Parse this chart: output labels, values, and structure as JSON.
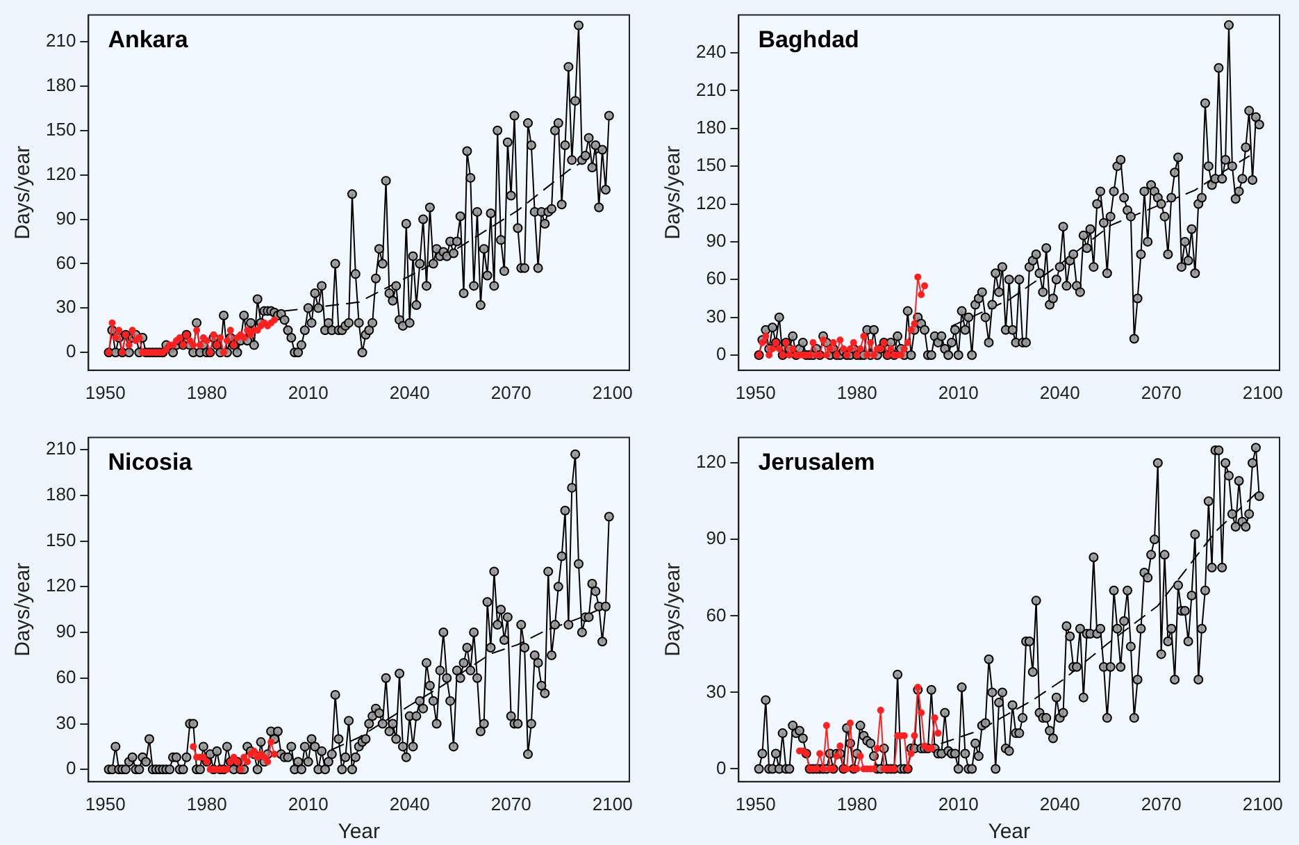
{
  "chart_data": [
    {
      "type": "line",
      "title": "Ankara",
      "ylabel": "Days/year",
      "xlim": [
        1945,
        2105
      ],
      "xticks": [
        1950,
        1980,
        2010,
        2040,
        2070,
        2100
      ],
      "ylim": [
        -12,
        228
      ],
      "yticks": [
        0,
        30,
        60,
        90,
        120,
        150,
        180,
        210
      ],
      "grid": false,
      "legend": false,
      "series": [
        {
          "color": "#ff2020",
          "marker": "circle",
          "line_style": "solid",
          "x": [
            1951,
            1952,
            1953,
            1954,
            1955,
            1956,
            1957,
            1958,
            1959,
            1960,
            1961,
            1962,
            1963,
            1964,
            1965,
            1966,
            1967,
            1968,
            1969,
            1970,
            1971,
            1972,
            1973,
            1974,
            1975,
            1976,
            1977,
            1978,
            1979,
            1980,
            1981,
            1982,
            1983,
            1984,
            1985,
            1986,
            1987,
            1988,
            1989,
            1990,
            1991,
            1992,
            1993,
            1994,
            1995,
            1996,
            1997,
            1998,
            1999,
            2000
          ],
          "values": [
            0,
            20,
            10,
            15,
            0,
            12,
            5,
            15,
            8,
            10,
            0,
            0,
            0,
            0,
            0,
            0,
            0,
            2,
            5,
            5,
            8,
            10,
            5,
            12,
            8,
            5,
            15,
            5,
            10,
            8,
            0,
            12,
            5,
            10,
            0,
            8,
            15,
            5,
            10,
            12,
            10,
            15,
            12,
            15,
            15,
            18,
            20,
            18,
            20,
            22
          ]
        },
        {
          "color": "#000000",
          "marker": "circle",
          "line_style": "solid",
          "x": [
            1951,
            1952,
            1953,
            1954,
            1955,
            1956,
            1957,
            1958,
            1959,
            1960,
            1961,
            1962,
            1963,
            1964,
            1965,
            1966,
            1967,
            1968,
            1969,
            1970,
            1971,
            1972,
            1973,
            1974,
            1975,
            1976,
            1977,
            1978,
            1979,
            1980,
            1981,
            1982,
            1983,
            1984,
            1985,
            1986,
            1987,
            1988,
            1989,
            1990,
            1991,
            1992,
            1993,
            1994,
            1995,
            1996,
            1997,
            1998,
            1999,
            2000,
            2001,
            2002,
            2003,
            2004,
            2005,
            2006,
            2007,
            2008,
            2009,
            2010,
            2011,
            2012,
            2013,
            2014,
            2015,
            2016,
            2017,
            2018,
            2019,
            2020,
            2021,
            2022,
            2023,
            2024,
            2025,
            2026,
            2027,
            2028,
            2029,
            2030,
            2031,
            2032,
            2033,
            2034,
            2035,
            2036,
            2037,
            2038,
            2039,
            2040,
            2041,
            2042,
            2043,
            2044,
            2045,
            2046,
            2047,
            2048,
            2049,
            2050,
            2051,
            2052,
            2053,
            2054,
            2055,
            2056,
            2057,
            2058,
            2059,
            2060,
            2061,
            2062,
            2063,
            2064,
            2065,
            2066,
            2067,
            2068,
            2069,
            2070,
            2071,
            2072,
            2073,
            2074,
            2075,
            2076,
            2077,
            2078,
            2079,
            2080,
            2081,
            2082,
            2083,
            2084,
            2085,
            2086,
            2087,
            2088,
            2089,
            2090,
            2091,
            2092,
            2093,
            2094,
            2095,
            2096,
            2097,
            2098,
            2099
          ],
          "values": [
            0,
            15,
            0,
            10,
            0,
            12,
            0,
            10,
            12,
            0,
            10,
            0,
            0,
            0,
            0,
            0,
            0,
            5,
            3,
            0,
            5,
            8,
            5,
            12,
            5,
            0,
            20,
            0,
            5,
            0,
            0,
            10,
            5,
            0,
            25,
            0,
            10,
            5,
            0,
            8,
            25,
            8,
            20,
            5,
            36,
            20,
            28,
            28,
            28,
            27,
            25,
            26,
            22,
            15,
            10,
            0,
            0,
            5,
            15,
            30,
            20,
            40,
            30,
            45,
            15,
            20,
            15,
            60,
            15,
            15,
            18,
            20,
            107,
            53,
            20,
            0,
            12,
            15,
            20,
            50,
            70,
            60,
            116,
            40,
            35,
            45,
            22,
            18,
            87,
            20,
            65,
            32,
            60,
            90,
            45,
            98,
            60,
            70,
            65,
            68,
            65,
            75,
            67,
            75,
            92,
            40,
            136,
            118,
            45,
            95,
            32,
            70,
            52,
            94,
            45,
            150,
            76,
            55,
            142,
            106,
            160,
            84,
            57,
            57,
            155,
            140,
            95,
            57,
            95,
            87,
            95,
            97,
            150,
            155,
            100,
            140,
            193,
            130,
            170,
            221,
            130,
            133,
            145,
            125,
            140,
            98,
            137,
            110,
            160
          ]
        },
        {
          "color": "#000000",
          "marker": "none",
          "line_style": "dashed",
          "x": [
            2003,
            2025,
            2047,
            2072,
            2087,
            2099
          ],
          "values": [
            28,
            34,
            60,
            96,
            123,
            140
          ]
        }
      ]
    },
    {
      "type": "line",
      "title": "Baghdad",
      "ylabel": "Days/year",
      "xlim": [
        1945,
        2105
      ],
      "xticks": [
        1950,
        1980,
        2010,
        2040,
        2070,
        2100
      ],
      "ylim": [
        -12,
        270
      ],
      "yticks": [
        0,
        30,
        60,
        90,
        120,
        150,
        180,
        210,
        240
      ],
      "grid": false,
      "legend": false,
      "series": [
        {
          "color": "#ff2020",
          "marker": "circle",
          "line_style": "solid",
          "x": [
            1951,
            1952,
            1953,
            1954,
            1955,
            1956,
            1957,
            1958,
            1959,
            1960,
            1961,
            1962,
            1963,
            1964,
            1965,
            1966,
            1967,
            1968,
            1969,
            1970,
            1971,
            1972,
            1973,
            1974,
            1975,
            1976,
            1977,
            1978,
            1979,
            1980,
            1981,
            1982,
            1983,
            1984,
            1985,
            1986,
            1987,
            1988,
            1989,
            1990,
            1991,
            1992,
            1993,
            1994,
            1995,
            1996,
            1997,
            1998,
            1999,
            2000
          ],
          "values": [
            0,
            10,
            15,
            0,
            5,
            10,
            5,
            0,
            10,
            0,
            5,
            0,
            0,
            0,
            0,
            0,
            10,
            0,
            0,
            12,
            0,
            5,
            10,
            0,
            12,
            5,
            0,
            5,
            10,
            0,
            5,
            15,
            0,
            10,
            0,
            5,
            5,
            10,
            0,
            5,
            0,
            0,
            0,
            5,
            10,
            20,
            25,
            62,
            48,
            55
          ]
        },
        {
          "color": "#000000",
          "marker": "circle",
          "line_style": "solid",
          "x": [
            1951,
            1952,
            1953,
            1954,
            1955,
            1956,
            1957,
            1958,
            1959,
            1960,
            1961,
            1962,
            1963,
            1964,
            1965,
            1966,
            1967,
            1968,
            1969,
            1970,
            1971,
            1972,
            1973,
            1974,
            1975,
            1976,
            1977,
            1978,
            1979,
            1980,
            1981,
            1982,
            1983,
            1984,
            1985,
            1986,
            1987,
            1988,
            1989,
            1990,
            1991,
            1992,
            1993,
            1994,
            1995,
            1996,
            1997,
            1998,
            1999,
            2000,
            2001,
            2002,
            2003,
            2004,
            2005,
            2006,
            2007,
            2008,
            2009,
            2010,
            2011,
            2012,
            2013,
            2014,
            2015,
            2016,
            2017,
            2018,
            2019,
            2020,
            2021,
            2022,
            2023,
            2024,
            2025,
            2026,
            2027,
            2028,
            2029,
            2030,
            2031,
            2032,
            2033,
            2034,
            2035,
            2036,
            2037,
            2038,
            2039,
            2040,
            2041,
            2042,
            2043,
            2044,
            2045,
            2046,
            2047,
            2048,
            2049,
            2050,
            2051,
            2052,
            2053,
            2054,
            2055,
            2056,
            2057,
            2058,
            2059,
            2060,
            2061,
            2062,
            2063,
            2064,
            2065,
            2066,
            2067,
            2068,
            2069,
            2070,
            2071,
            2072,
            2073,
            2074,
            2075,
            2076,
            2077,
            2078,
            2079,
            2080,
            2081,
            2082,
            2083,
            2084,
            2085,
            2086,
            2087,
            2088,
            2089,
            2090,
            2091,
            2092,
            2093,
            2094,
            2095,
            2096,
            2097,
            2098,
            2099
          ],
          "values": [
            0,
            12,
            20,
            5,
            22,
            10,
            30,
            0,
            10,
            5,
            15,
            0,
            5,
            10,
            0,
            0,
            0,
            5,
            0,
            15,
            10,
            0,
            5,
            0,
            0,
            3,
            0,
            0,
            5,
            0,
            0,
            0,
            20,
            0,
            20,
            0,
            5,
            10,
            0,
            10,
            0,
            15,
            5,
            0,
            35,
            0,
            20,
            30,
            25,
            20,
            0,
            0,
            15,
            10,
            15,
            5,
            0,
            10,
            20,
            0,
            35,
            20,
            30,
            0,
            40,
            45,
            50,
            30,
            10,
            40,
            65,
            50,
            70,
            20,
            60,
            20,
            10,
            60,
            10,
            10,
            70,
            75,
            80,
            65,
            50,
            85,
            40,
            45,
            60,
            70,
            102,
            55,
            75,
            80,
            55,
            50,
            95,
            85,
            100,
            70,
            120,
            130,
            105,
            65,
            110,
            130,
            150,
            155,
            125,
            115,
            110,
            13,
            45,
            80,
            130,
            90,
            135,
            130,
            125,
            120,
            110,
            80,
            125,
            145,
            157,
            70,
            90,
            75,
            100,
            65,
            120,
            125,
            200,
            150,
            135,
            140,
            228,
            140,
            155,
            262,
            150,
            124,
            130,
            140,
            165,
            194,
            139,
            189,
            183
          ]
        },
        {
          "color": "#000000",
          "marker": "none",
          "line_style": "dashed",
          "x": [
            2008,
            2025,
            2040,
            2055,
            2072,
            2080,
            2088,
            2096
          ],
          "values": [
            23,
            44,
            72,
            103,
            122,
            131,
            145,
            158
          ]
        }
      ]
    },
    {
      "type": "line",
      "title": "Nicosia",
      "ylabel": "Days/year",
      "xlabel": "Year",
      "xlim": [
        1945,
        2105
      ],
      "xticks": [
        1950,
        1980,
        2010,
        2040,
        2070,
        2100
      ],
      "ylim": [
        -8,
        218
      ],
      "yticks": [
        0,
        30,
        60,
        90,
        120,
        150,
        180,
        210
      ],
      "grid": false,
      "legend": false,
      "series": [
        {
          "color": "#ff2020",
          "marker": "circle",
          "line_style": "solid",
          "x": [
            1976,
            1977,
            1978,
            1979,
            1980,
            1981,
            1982,
            1983,
            1984,
            1985,
            1986,
            1987,
            1988,
            1989,
            1990,
            1991,
            1992,
            1993,
            1994,
            1995,
            1996,
            1997,
            1998,
            1999,
            2000
          ],
          "values": [
            15,
            8,
            8,
            8,
            5,
            0,
            0,
            0,
            0,
            0,
            0,
            5,
            8,
            5,
            0,
            8,
            5,
            10,
            12,
            8,
            10,
            8,
            5,
            18,
            10
          ]
        },
        {
          "color": "#000000",
          "marker": "circle",
          "line_style": "solid",
          "x": [
            1951,
            1952,
            1953,
            1954,
            1955,
            1956,
            1957,
            1958,
            1959,
            1960,
            1961,
            1962,
            1963,
            1964,
            1965,
            1966,
            1967,
            1968,
            1969,
            1970,
            1971,
            1972,
            1973,
            1974,
            1975,
            1976,
            1977,
            1978,
            1979,
            1980,
            1981,
            1982,
            1983,
            1984,
            1985,
            1986,
            1987,
            1988,
            1989,
            1990,
            1991,
            1992,
            1993,
            1994,
            1995,
            1996,
            1997,
            1998,
            1999,
            2000,
            2001,
            2002,
            2003,
            2004,
            2005,
            2006,
            2007,
            2008,
            2009,
            2010,
            2011,
            2012,
            2013,
            2014,
            2015,
            2016,
            2017,
            2018,
            2019,
            2020,
            2021,
            2022,
            2023,
            2024,
            2025,
            2026,
            2027,
            2028,
            2029,
            2030,
            2031,
            2032,
            2033,
            2034,
            2035,
            2036,
            2037,
            2038,
            2039,
            2040,
            2041,
            2042,
            2043,
            2044,
            2045,
            2046,
            2047,
            2048,
            2049,
            2050,
            2051,
            2052,
            2053,
            2054,
            2055,
            2056,
            2057,
            2058,
            2059,
            2060,
            2061,
            2062,
            2063,
            2064,
            2065,
            2066,
            2067,
            2068,
            2069,
            2070,
            2071,
            2072,
            2073,
            2074,
            2075,
            2076,
            2077,
            2078,
            2079,
            2080,
            2081,
            2082,
            2083,
            2084,
            2085,
            2086,
            2087,
            2088,
            2089,
            2090,
            2091,
            2092,
            2093,
            2094,
            2095,
            2096,
            2097,
            2098,
            2099
          ],
          "values": [
            0,
            0,
            15,
            0,
            0,
            0,
            5,
            8,
            0,
            0,
            8,
            5,
            20,
            0,
            0,
            0,
            0,
            0,
            0,
            8,
            8,
            0,
            0,
            8,
            30,
            30,
            0,
            0,
            15,
            5,
            10,
            0,
            12,
            0,
            0,
            15,
            5,
            0,
            5,
            0,
            0,
            15,
            12,
            10,
            0,
            18,
            5,
            10,
            25,
            20,
            25,
            10,
            8,
            8,
            15,
            0,
            5,
            0,
            15,
            5,
            20,
            15,
            0,
            12,
            0,
            5,
            10,
            49,
            20,
            0,
            8,
            32,
            0,
            8,
            15,
            18,
            20,
            30,
            35,
            40,
            37,
            30,
            60,
            25,
            30,
            20,
            63,
            15,
            8,
            35,
            15,
            35,
            45,
            40,
            70,
            55,
            45,
            30,
            65,
            90,
            60,
            45,
            15,
            65,
            60,
            70,
            80,
            65,
            90,
            60,
            25,
            30,
            110,
            80,
            130,
            95,
            105,
            85,
            100,
            35,
            30,
            30,
            95,
            80,
            10,
            30,
            75,
            70,
            55,
            50,
            130,
            75,
            95,
            120,
            140,
            170,
            95,
            185,
            207,
            135,
            90,
            100,
            100,
            122,
            117,
            107,
            84,
            107,
            166
          ]
        },
        {
          "color": "#000000",
          "marker": "none",
          "line_style": "dashed",
          "x": [
            2017,
            2025,
            2040,
            2049,
            2064,
            2072,
            2080,
            2091,
            2098
          ],
          "values": [
            13,
            21,
            42,
            54,
            76,
            82,
            91,
            100,
            107
          ]
        }
      ]
    },
    {
      "type": "line",
      "title": "Jerusalem",
      "ylabel": "Days/year",
      "xlabel": "Year",
      "xlim": [
        1945,
        2105
      ],
      "xticks": [
        1950,
        1980,
        2010,
        2040,
        2070,
        2100
      ],
      "ylim": [
        -5,
        130
      ],
      "yticks": [
        0,
        30,
        60,
        90,
        120
      ],
      "grid": false,
      "legend": false,
      "series": [
        {
          "color": "#ff2020",
          "marker": "circle",
          "line_style": "solid",
          "x": [
            1963,
            1964,
            1965,
            1966,
            1967,
            1968,
            1969,
            1970,
            1971,
            1972,
            1973,
            1974,
            1975,
            1976,
            1977,
            1978,
            1979,
            1980,
            1981,
            1982,
            1983,
            1984,
            1985,
            1986,
            1987,
            1988,
            1989,
            1990,
            1991,
            1992,
            1993,
            1994,
            1995,
            1996,
            1997,
            1998,
            1999,
            2000,
            2001,
            2002,
            2003,
            2004
          ],
          "values": [
            7,
            7,
            6,
            0,
            0,
            0,
            6,
            0,
            17,
            0,
            0,
            5,
            9,
            0,
            0,
            18,
            0,
            0,
            5,
            0,
            0,
            0,
            0,
            8,
            23,
            0,
            0,
            0,
            0,
            13,
            13,
            13,
            0,
            6,
            13,
            32,
            22,
            9,
            8,
            8,
            20,
            14
          ]
        },
        {
          "color": "#000000",
          "marker": "circle",
          "line_style": "solid",
          "x": [
            1951,
            1952,
            1953,
            1954,
            1955,
            1956,
            1957,
            1958,
            1959,
            1960,
            1961,
            1962,
            1963,
            1964,
            1965,
            1966,
            1967,
            1968,
            1969,
            1970,
            1971,
            1972,
            1973,
            1974,
            1975,
            1976,
            1977,
            1978,
            1979,
            1980,
            1981,
            1982,
            1983,
            1984,
            1985,
            1986,
            1987,
            1988,
            1989,
            1990,
            1991,
            1992,
            1993,
            1994,
            1995,
            1996,
            1997,
            1998,
            1999,
            2000,
            2001,
            2002,
            2003,
            2004,
            2005,
            2006,
            2007,
            2008,
            2009,
            2010,
            2011,
            2012,
            2013,
            2014,
            2015,
            2016,
            2017,
            2018,
            2019,
            2020,
            2021,
            2022,
            2023,
            2024,
            2025,
            2026,
            2027,
            2028,
            2029,
            2030,
            2031,
            2032,
            2033,
            2034,
            2035,
            2036,
            2037,
            2038,
            2039,
            2040,
            2041,
            2042,
            2043,
            2044,
            2045,
            2046,
            2047,
            2048,
            2049,
            2050,
            2051,
            2052,
            2053,
            2054,
            2055,
            2056,
            2057,
            2058,
            2059,
            2060,
            2061,
            2062,
            2063,
            2064,
            2065,
            2066,
            2067,
            2068,
            2069,
            2070,
            2071,
            2072,
            2073,
            2074,
            2075,
            2076,
            2077,
            2078,
            2079,
            2080,
            2081,
            2082,
            2083,
            2084,
            2085,
            2086,
            2087,
            2088,
            2089,
            2090,
            2091,
            2092,
            2093,
            2094,
            2095,
            2096,
            2097,
            2098,
            2099
          ],
          "values": [
            0,
            6,
            27,
            0,
            0,
            6,
            0,
            14,
            0,
            0,
            17,
            14,
            15,
            12,
            6,
            0,
            0,
            0,
            0,
            0,
            0,
            6,
            0,
            6,
            6,
            0,
            16,
            10,
            0,
            6,
            17,
            13,
            11,
            10,
            5,
            0,
            0,
            8,
            0,
            0,
            0,
            37,
            0,
            0,
            0,
            8,
            8,
            31,
            8,
            8,
            8,
            31,
            8,
            6,
            6,
            22,
            7,
            6,
            6,
            0,
            32,
            6,
            0,
            0,
            10,
            5,
            17,
            18,
            43,
            30,
            0,
            26,
            30,
            8,
            7,
            25,
            14,
            14,
            20,
            50,
            50,
            38,
            66,
            22,
            20,
            20,
            15,
            12,
            28,
            20,
            22,
            56,
            52,
            40,
            40,
            55,
            28,
            53,
            53,
            83,
            53,
            55,
            40,
            20,
            40,
            70,
            55,
            40,
            58,
            70,
            48,
            20,
            35,
            55,
            77,
            75,
            84,
            90,
            120,
            45,
            84,
            50,
            55,
            35,
            72,
            62,
            62,
            50,
            68,
            92,
            35,
            55,
            70,
            105,
            79,
            125,
            125,
            79,
            120,
            115,
            100,
            95,
            113,
            97,
            95,
            100,
            120,
            126,
            107
          ]
        },
        {
          "color": "#000000",
          "marker": "none",
          "line_style": "dashed",
          "x": [
            2005,
            2016,
            2032,
            2041,
            2054,
            2069,
            2086,
            2094,
            2098
          ],
          "values": [
            10,
            15,
            27,
            35,
            49,
            64,
            93,
            103,
            108
          ]
        }
      ]
    }
  ]
}
